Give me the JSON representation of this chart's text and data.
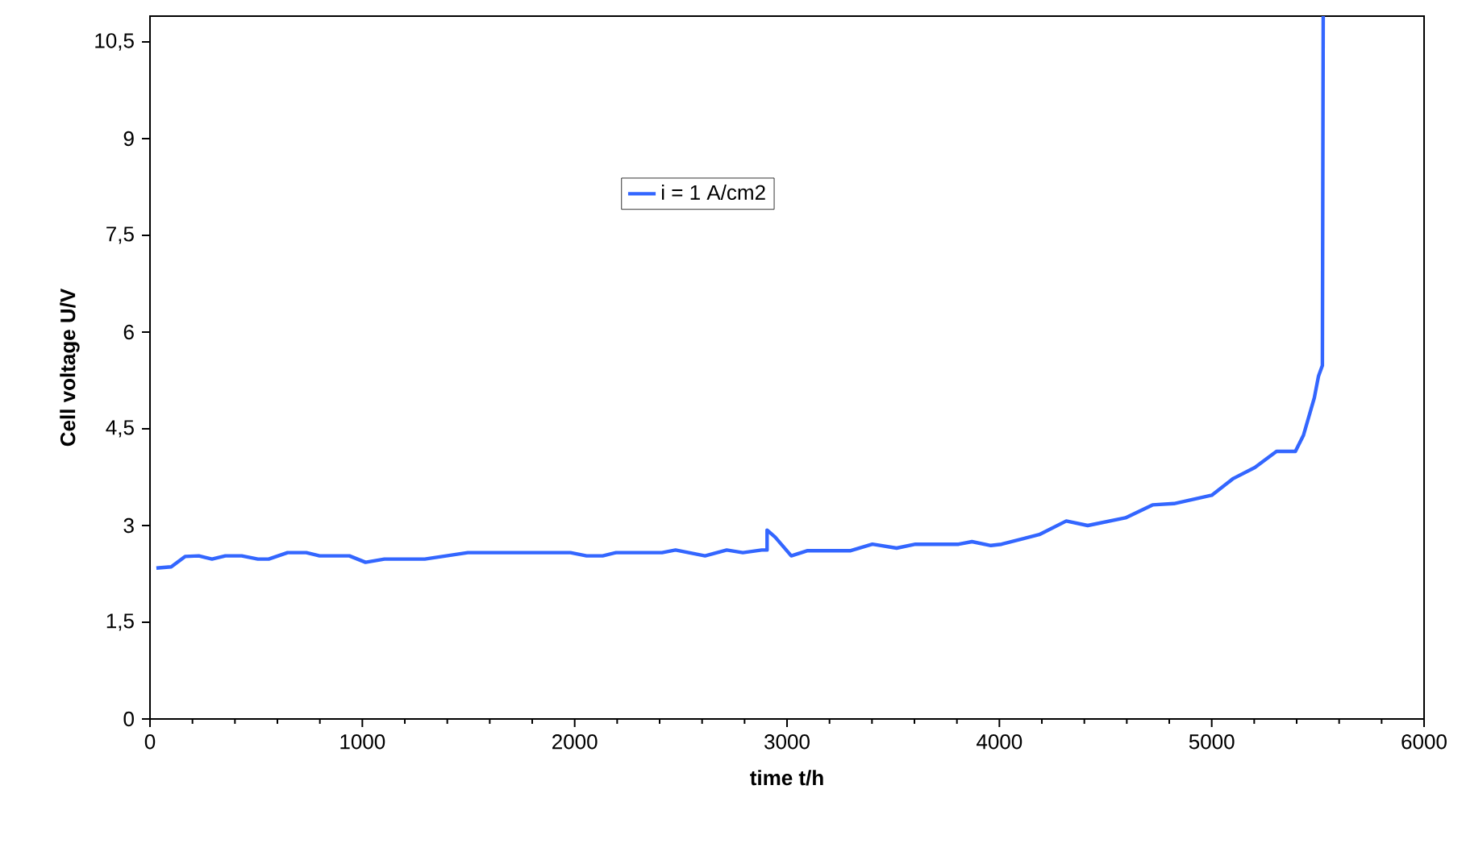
{
  "chart_data": {
    "type": "line",
    "xlabel": "time t/h",
    "ylabel": "Cell voltage U/V",
    "xlim": [
      0,
      6000
    ],
    "xticks": [
      0,
      1000,
      2000,
      3000,
      4000,
      5000,
      6000
    ],
    "ylim": [
      0,
      10.9
    ],
    "yticks": [
      0,
      {
        "value": 1.5,
        "label": "1,5"
      },
      3,
      {
        "value": 4.5,
        "label": "4,5"
      },
      6,
      {
        "value": 7.5,
        "label": "7,5"
      },
      9,
      {
        "value": 10.5,
        "label": "10,5"
      }
    ],
    "grid": false,
    "legend": "top",
    "line_style": "solid",
    "marker": "none",
    "series": [
      {
        "name": "i = 1 A/cm2",
        "color": "#3366ff",
        "x": [
          30,
          100,
          165,
          230,
          292,
          355,
          432,
          508,
          559,
          648,
          736,
          799,
          939,
          1015,
          1104,
          1294,
          1497,
          1980,
          2056,
          2132,
          2195,
          2411,
          2475,
          2614,
          2716,
          2792,
          2881,
          2906,
          2906,
          2944,
          3020,
          3097,
          3300,
          3402,
          3516,
          3605,
          3808,
          3871,
          3960,
          4010,
          4188,
          4315,
          4416,
          4594,
          4721,
          4822,
          5000,
          5102,
          5203,
          5305,
          5394,
          5432,
          5483,
          5503,
          5521,
          5525
        ],
        "values": [
          2.34,
          2.36,
          2.52,
          2.53,
          2.48,
          2.53,
          2.53,
          2.48,
          2.48,
          2.58,
          2.58,
          2.53,
          2.53,
          2.43,
          2.48,
          2.48,
          2.58,
          2.58,
          2.53,
          2.53,
          2.58,
          2.58,
          2.62,
          2.53,
          2.62,
          2.58,
          2.62,
          2.62,
          2.93,
          2.82,
          2.53,
          2.61,
          2.61,
          2.71,
          2.65,
          2.71,
          2.71,
          2.75,
          2.69,
          2.71,
          2.86,
          3.07,
          3.0,
          3.12,
          3.32,
          3.34,
          3.47,
          3.73,
          3.9,
          4.15,
          4.15,
          4.4,
          4.98,
          5.32,
          5.48,
          10.9
        ]
      }
    ]
  }
}
